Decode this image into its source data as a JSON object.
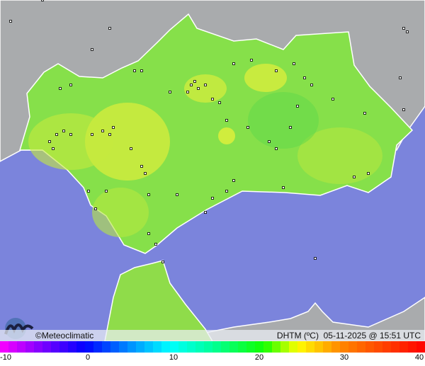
{
  "map": {
    "colors": {
      "sea": "#7b84dc",
      "land_outside": "#a9abad",
      "field_green": "#86e04a",
      "field_yellow": "#d8ee3c",
      "border": "#ffffff",
      "station": "#000000"
    }
  },
  "footer": {
    "brand": "©Meteoclimatic",
    "variable": "DHTM (ºC)",
    "timestamp": "05-11-2025 @ 15:51 UTC"
  },
  "legend": {
    "min": -10,
    "max": 40,
    "ticks": [
      "-10",
      "0",
      "10",
      "20",
      "30",
      "40"
    ],
    "stops": [
      [
        "-10",
        "#ff00ff"
      ],
      [
        "-5",
        "#7a00ff"
      ],
      [
        "0",
        "#0000ff"
      ],
      [
        "5",
        "#0088ff"
      ],
      [
        "10",
        "#00ffff"
      ],
      [
        "15",
        "#00ff99"
      ],
      [
        "21",
        "#11ff00"
      ],
      [
        "25",
        "#ffff00"
      ],
      [
        "30",
        "#ff8800"
      ],
      [
        "40",
        "#ff0000"
      ]
    ]
  }
}
